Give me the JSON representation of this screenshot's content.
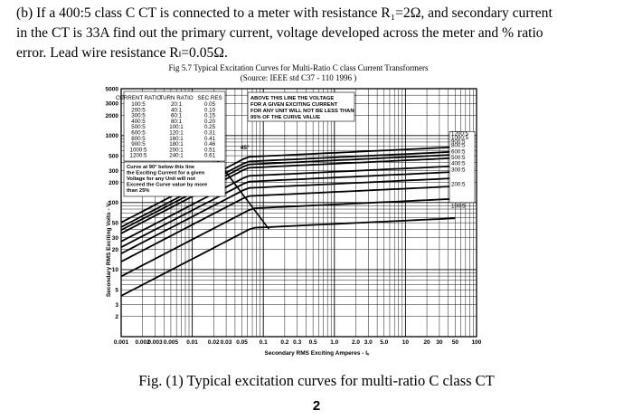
{
  "question": {
    "line1": "(b) If a 400:5 class C CT is connected to a meter with resistance R₁=2Ω, and secondary current",
    "line2": "in the CT is 33A find out the primary current, voltage developed across the meter and % ratio",
    "line3": "error. Lead wire resistance Rₗ=0.05Ω."
  },
  "figure": {
    "title": "Fig 5.7 Typical Excitation Curves for Multi-Ratio C class Current Transformers",
    "source": "(Source: IEEE std C37 - 110 1996 )",
    "caption": "Fig. (1) Typical excitation curves for multi-ratio C class CT",
    "page_number": "2"
  },
  "chart_data": {
    "type": "line",
    "xlabel": "Secondary RMS Exciting Amperes - Iₑ",
    "ylabel": "Secondary RMS Exciting Volts - Vₛ",
    "xscale": "log",
    "yscale": "log",
    "xlim": [
      0.001,
      100
    ],
    "ylim": [
      1,
      5000
    ],
    "grid": true,
    "x_ticks": [
      "0.001",
      "0.002",
      "0.003",
      "0.005",
      "0.01",
      "0.02",
      "0.03",
      "0.05",
      "0.1",
      "0.2",
      "0.3",
      "0.5",
      "1.0",
      "2.0",
      "3.0",
      "5.0",
      "10",
      "20",
      "30",
      "50",
      "100"
    ],
    "y_ticks": [
      "5000",
      "3000",
      "2000",
      "1000",
      "500",
      "300",
      "200",
      "100",
      "50",
      "30",
      "20",
      "10",
      "5",
      "3",
      "2"
    ],
    "table": {
      "headers": [
        "CURRENT RATIO",
        "TURN RATIO",
        "SEC RES"
      ],
      "rows": [
        [
          "100:5",
          "20:1",
          "0.05"
        ],
        [
          "200:5",
          "40:1",
          "0.10"
        ],
        [
          "300:5",
          "60:1",
          "0.15"
        ],
        [
          "400:5",
          "80:1",
          "0.20"
        ],
        [
          "500:5",
          "100:1",
          "0.25"
        ],
        [
          "600:5",
          "120:1",
          "0.31"
        ],
        [
          "800:5",
          "160:1",
          "0.41"
        ],
        [
          "900:5",
          "180:1",
          "0.46"
        ],
        [
          "1000:5",
          "200:1",
          "0.51"
        ],
        [
          "1200:5",
          "240:1",
          "0.61"
        ]
      ]
    },
    "note_upper": "ABOVE THIS LINE THE VOLTAGE FOR A GIVEN EXCITING CURRENT FOR ANY UNIT WILL NOT BE LESS THAN 95% OF THE CURVE VALUE",
    "note_lower": "Curve at 90° below this line the Exciting Current for a given Voltage for any Unit will not Exceed the Curve value by more than 25%",
    "knee_label": "45°",
    "series": [
      {
        "name": "1200:5",
        "knee_v": 480,
        "knee_i": 0.06
      },
      {
        "name": "1000:5",
        "knee_v": 410,
        "knee_i": 0.06
      },
      {
        "name": "900:5",
        "knee_v": 370,
        "knee_i": 0.06
      },
      {
        "name": "800:5",
        "knee_v": 330,
        "knee_i": 0.06
      },
      {
        "name": "600:5",
        "knee_v": 250,
        "knee_i": 0.06
      },
      {
        "name": "500:5",
        "knee_v": 205,
        "knee_i": 0.06
      },
      {
        "name": "400:5",
        "knee_v": 165,
        "knee_i": 0.06
      },
      {
        "name": "300:5",
        "knee_v": 125,
        "knee_i": 0.06
      },
      {
        "name": "200:5",
        "knee_v": 82,
        "knee_i": 0.07
      },
      {
        "name": "100:5",
        "knee_v": 42,
        "knee_i": 0.07
      }
    ]
  }
}
